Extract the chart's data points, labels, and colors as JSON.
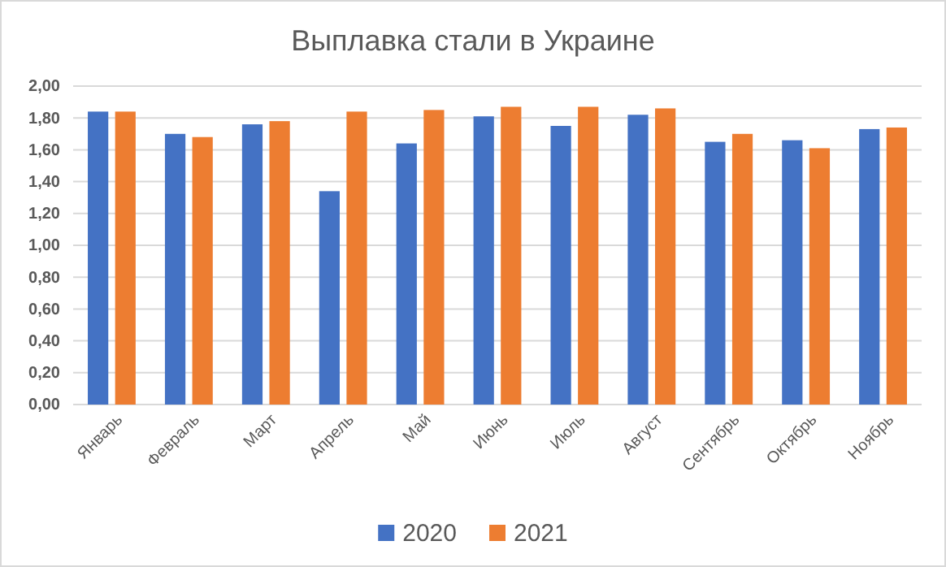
{
  "chart_data": {
    "type": "bar",
    "title": "Выплавка стали в Украине",
    "categories": [
      "Январь",
      "Февраль",
      "Март",
      "Апрель",
      "Май",
      "Июнь",
      "Июль",
      "Август",
      "Сентябрь",
      "Октябрь",
      "Ноябрь"
    ],
    "series": [
      {
        "name": "2020",
        "color": "#4472c4",
        "values": [
          1.84,
          1.7,
          1.76,
          1.34,
          1.64,
          1.81,
          1.75,
          1.82,
          1.65,
          1.66,
          1.73
        ]
      },
      {
        "name": "2021",
        "color": "#ed7d31",
        "values": [
          1.84,
          1.68,
          1.78,
          1.84,
          1.85,
          1.87,
          1.87,
          1.86,
          1.7,
          1.61,
          1.74
        ]
      }
    ],
    "ylim": [
      0,
      2
    ],
    "yticks": [
      {
        "value": 0,
        "label": "0,00"
      },
      {
        "value": 0.2,
        "label": "0,20"
      },
      {
        "value": 0.4,
        "label": "0,40"
      },
      {
        "value": 0.6,
        "label": "0,60"
      },
      {
        "value": 0.8,
        "label": "0,80"
      },
      {
        "value": 1,
        "label": "1,00"
      },
      {
        "value": 1.2,
        "label": "1,20"
      },
      {
        "value": 1.4,
        "label": "1,40"
      },
      {
        "value": 1.6,
        "label": "1,60"
      },
      {
        "value": 1.8,
        "label": "1,80"
      },
      {
        "value": 2,
        "label": "2,00"
      }
    ],
    "grid": "y",
    "legend": "bottom"
  }
}
